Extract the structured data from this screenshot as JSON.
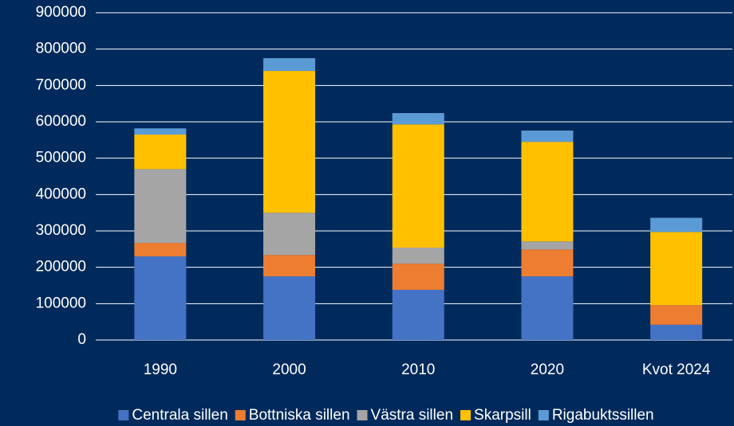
{
  "chart_data": {
    "type": "stacked_bar",
    "categories": [
      "1990",
      "2000",
      "2010",
      "2020",
      "Kvot 2024"
    ],
    "series": [
      {
        "name": "Centrala sillen",
        "color": "#4472c4",
        "values": [
          230000,
          175000,
          138000,
          175000,
          42000
        ]
      },
      {
        "name": "Bottniska sillen",
        "color": "#ed7d31",
        "values": [
          37000,
          59000,
          72000,
          74000,
          54000
        ]
      },
      {
        "name": "Västra sillen",
        "color": "#a5a5a5",
        "values": [
          203000,
          116000,
          44000,
          22000,
          0
        ]
      },
      {
        "name": "Skarpsill",
        "color": "#ffc000",
        "values": [
          95000,
          390000,
          339000,
          274000,
          201000
        ]
      },
      {
        "name": "Rigabuktssillen",
        "color": "#5b9bd5",
        "values": [
          17000,
          35000,
          31000,
          31000,
          39000
        ]
      }
    ],
    "ylim": [
      0,
      900000
    ],
    "yticks": [
      0,
      100000,
      200000,
      300000,
      400000,
      500000,
      600000,
      700000,
      800000,
      900000
    ],
    "grid": true,
    "legend": "bottom"
  }
}
